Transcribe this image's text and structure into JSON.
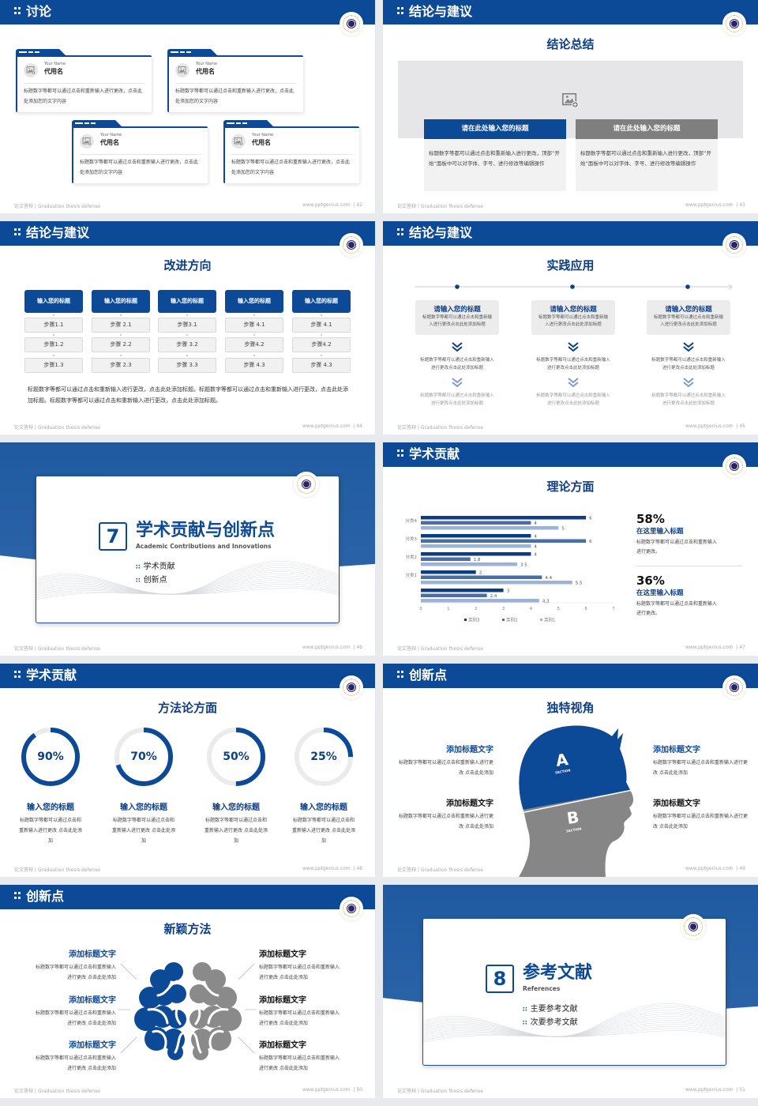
{
  "footer_left": "论文答辩 | Graduation thesis defense",
  "footer_url": "www.pptgenius.com",
  "colors": {
    "primary": "#0c4a97",
    "gray": "#8a8a8a",
    "series_dark": "#0c3d82",
    "series_mid": "#4a6fa5",
    "series_light": "#9db3d6"
  },
  "icons": {
    "header": "grid-dots-icon",
    "logo": "university-seal-logo",
    "image": "image-placeholder-icon",
    "chevron": "double-chevron-down-icon"
  },
  "slides": [
    {
      "page": "42",
      "section": "讨论",
      "cards": [
        {
          "name_en": "Your Name",
          "name_cn": "代用名",
          "text": "标题数字等都可以通过点击和重新输入进行更改，点击此处添加您的文字内容"
        },
        {
          "name_en": "Your Name",
          "name_cn": "代用名",
          "text": "标题数字等都可以通过点击和重新输入进行更改，点击此处添加您的文字内容"
        },
        {
          "name_en": "Your Name",
          "name_cn": "代用名",
          "text": "标题数字等都可以通过点击和重新输入进行更改，点击此处添加您的文字内容"
        },
        {
          "name_en": "Your Name",
          "name_cn": "代用名",
          "text": "标题数字等都可以通过点击和重新输入进行更改，点击此处添加您的文字内容"
        }
      ]
    },
    {
      "page": "43",
      "section": "结论与建议",
      "subtitle": "结论总结",
      "boxes": [
        {
          "title": "请在此处输入您的标题",
          "text": "标题数字等都可以通过点击和重新输入进行更改，顶部“开始”面板中可以对字体、字号、进行修改等编辑操作"
        },
        {
          "title": "请在此处输入您的标题",
          "text": "标题数字等都可以通过点击和重新输入进行更改，顶部“开始”面板中可以对字体、字号、进行修改等编辑操作"
        }
      ]
    },
    {
      "page": "44",
      "section": "结论与建议",
      "subtitle": "改进方向",
      "columns": [
        {
          "title": "输入您的标题",
          "steps": [
            "步骤1.1",
            "步骤1.2",
            "步骤1.3"
          ]
        },
        {
          "title": "输入您的标题",
          "steps": [
            "步骤 2.1",
            "步骤 2.2",
            "步骤 2.3"
          ]
        },
        {
          "title": "输入您的标题",
          "steps": [
            "步骤3.1",
            "步骤 3.2",
            "步骤 3.3"
          ]
        },
        {
          "title": "输入您的标题",
          "steps": [
            "步骤 4.1",
            "步骤4.2",
            "步骤 4.3"
          ]
        },
        {
          "title": "输入您的标题",
          "steps": [
            "步骤 4.1",
            "步骤4.2",
            "步骤 4.3"
          ]
        }
      ],
      "paragraph": "标题数字等都可以通过点击和重新输入进行更改，点击此处添加标题。标题数字等都可以通过点击和重新输入进行更改，点击此处添加标题。标题数字等都可以通过点击和重新输入进行更改，点击此处添加标题。"
    },
    {
      "page": "45",
      "section": "结论与建议",
      "subtitle": "实践应用",
      "items": [
        {
          "title": "请输入您的标题",
          "text": "标题数字等都可以通过点击和重新输入进行更改点击此处添加标题",
          "text2": "标题数字等都可以通过点击和重新输入进行更改点击此处添加标题",
          "text3": "标题数字等都可以通过点击和重新输入进行更改点击此处添加标题"
        },
        {
          "title": "请输入您的标题",
          "text": "标题数字等都可以通过点击和重新输入进行更改点击此处添加标题",
          "text2": "标题数字等都可以通过点击和重新输入进行更改点击此处添加标题",
          "text3": "标题数字等都可以通过点击和重新输入进行更改点击此处添加标题"
        },
        {
          "title": "请输入您的标题",
          "text": "标题数字等都可以通过点击和重新输入进行更改点击此处添加标题",
          "text2": "标题数字等都可以通过点击和重新输入进行更改点击此处添加标题",
          "text3": "标题数字等都可以通过点击和重新输入进行更改点击此处添加标题"
        }
      ]
    },
    {
      "page": "46",
      "number": "7",
      "title": "学术贡献与创新点",
      "subtitle_en": "Academic Contributions and Innovations",
      "bullets": [
        "学术贡献",
        "创新点"
      ]
    },
    {
      "page": "47",
      "section": "学术贡献",
      "subtitle": "理论方面",
      "stats": [
        {
          "value": "58%",
          "title": "在这里输入标题",
          "text": "标题数字等都可以通过点击和重新输入进行更改。"
        },
        {
          "value": "36%",
          "title": "在这里输入标题",
          "text": "标题数字等都可以通过点击和重新输入进行更改。"
        }
      ]
    },
    {
      "page": "48",
      "section": "学术贡献",
      "subtitle": "方法论方面",
      "rings": [
        {
          "percent": 90,
          "label": "90%",
          "title": "输入您的标题",
          "text": "标题数字等都可以通过点击和重新输入进行更改 点击此处添加"
        },
        {
          "percent": 70,
          "label": "70%",
          "title": "输入您的标题",
          "text": "标题数字等都可以通过点击和重新输入进行更改 点击此处添加"
        },
        {
          "percent": 50,
          "label": "50%",
          "title": "输入您的标题",
          "text": "标题数字等都可以通过点击和重新输入进行更改 点击此处添加"
        },
        {
          "percent": 25,
          "label": "25%",
          "title": "输入您的标题",
          "text": "标题数字等都可以通过点击和重新输入进行更改 点击此处添加"
        }
      ]
    },
    {
      "page": "49",
      "section": "创新点",
      "subtitle": "独特视角",
      "head": {
        "a": "A",
        "b": "B",
        "section": "SECTION"
      },
      "items": [
        {
          "title": "添加标题文字",
          "text": "标题数字等都可以通过点击和重新输入进行更改 点击此处添加"
        },
        {
          "title": "添加标题文字",
          "text": "标题数字等都可以通过点击和重新输入进行更改 点击此处添加"
        },
        {
          "title": "添加标题文字",
          "text": "标题数字等都可以通过点击和重新输入进行更改 点击此处添加"
        },
        {
          "title": "添加标题文字",
          "text": "标题数字等都可以通过点击和重新输入进行更改 点击此处添加"
        }
      ]
    },
    {
      "page": "50",
      "section": "创新点",
      "subtitle": "新颖方法",
      "items": [
        {
          "title": "添加标题文字",
          "text": "标题数字等都可以通过点击和重新输入进行更改 点击此处添加"
        },
        {
          "title": "添加标题文字",
          "text": "标题数字等都可以通过点击和重新输入进行更改 点击此处添加"
        },
        {
          "title": "添加标题文字",
          "text": "标题数字等都可以通过点击和重新输入进行更改 点击此处添加"
        },
        {
          "title": "添加标题文字",
          "text": "标题数字等都可以通过点击和重新输入进行更改 点击此处添加"
        },
        {
          "title": "添加标题文字",
          "text": "标题数字等都可以通过点击和重新输入进行更改 点击此处添加"
        },
        {
          "title": "添加标题文字",
          "text": "标题数字等都可以通过点击和重新输入进行更改 点击此处添加"
        }
      ]
    },
    {
      "page": "51",
      "number": "8",
      "title": "参考文献",
      "subtitle_en": "References",
      "bullets": [
        "主要参考文献",
        "次要参考文献"
      ]
    }
  ],
  "chart_data": {
    "type": "bar",
    "orientation": "horizontal",
    "categories": [
      "分类4",
      "分类3",
      "分类2",
      "分类1",
      ""
    ],
    "series": [
      {
        "name": "类别3",
        "values": [
          6,
          4,
          4,
          2,
          3
        ]
      },
      {
        "name": "类别2",
        "values": [
          4,
          6,
          1.8,
          4.4,
          2.4
        ]
      },
      {
        "name": "类别1",
        "values": [
          5,
          4,
          3.5,
          5.5,
          4.3
        ]
      }
    ],
    "xlim": [
      0,
      7
    ],
    "xticks": [
      "0",
      "1",
      "2",
      "3",
      "4",
      "5",
      "6",
      "7"
    ],
    "data_labels": true,
    "grid": false,
    "legend": "bottom"
  }
}
